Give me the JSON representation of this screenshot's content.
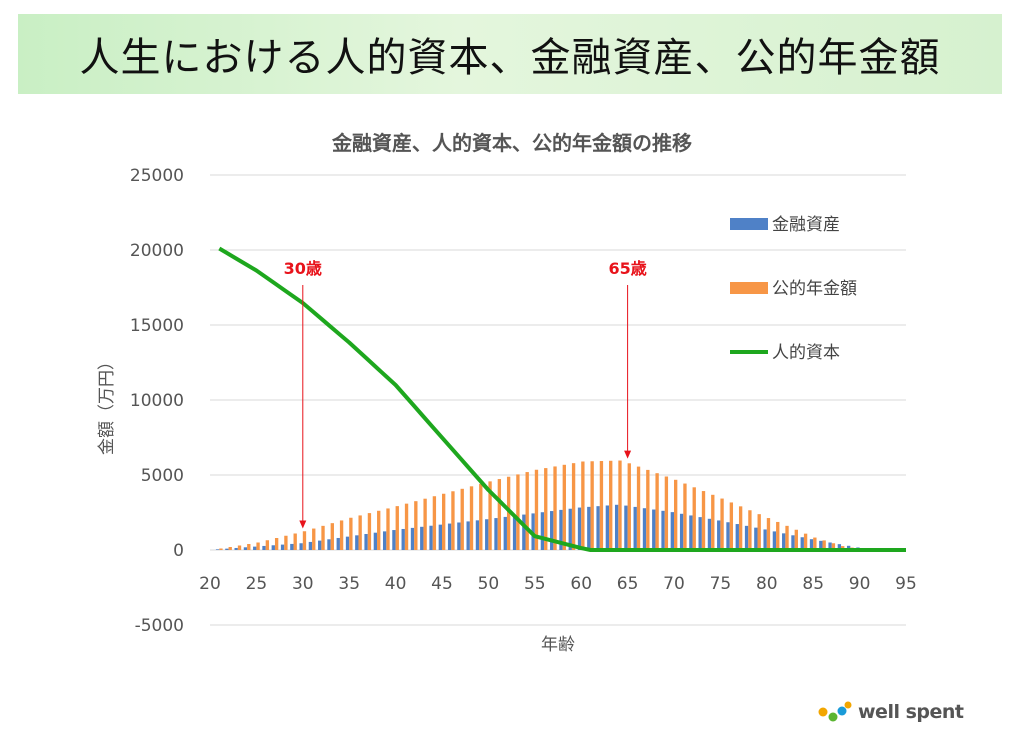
{
  "page_title": "人生における人的資本、金融資産、公的年金額",
  "brand": {
    "name": "well spent",
    "colors": [
      "#f2a600",
      "#5bb531",
      "#1a9bd8"
    ]
  },
  "chart_data": {
    "type": "bar",
    "title": "金融資産、人的資本、公的年金額の推移",
    "xlabel": "年齢",
    "ylabel": "金額（万円）",
    "xlim": [
      20,
      95
    ],
    "ylim": [
      -5000,
      25000
    ],
    "x_ticks": [
      20,
      25,
      30,
      35,
      40,
      45,
      50,
      55,
      60,
      65,
      70,
      75,
      80,
      85,
      90,
      95
    ],
    "y_ticks": [
      -5000,
      0,
      5000,
      10000,
      15000,
      20000,
      25000
    ],
    "grid": true,
    "legend_position": "top-right",
    "x": [
      21,
      22,
      23,
      24,
      25,
      26,
      27,
      28,
      29,
      30,
      31,
      32,
      33,
      34,
      35,
      36,
      37,
      38,
      39,
      40,
      41,
      42,
      43,
      44,
      45,
      46,
      47,
      48,
      49,
      50,
      51,
      52,
      53,
      54,
      55,
      56,
      57,
      58,
      59,
      60,
      61,
      62,
      63,
      64,
      65,
      66,
      67,
      68,
      69,
      70,
      71,
      72,
      73,
      74,
      75,
      76,
      77,
      78,
      79,
      80,
      81,
      82,
      83,
      84,
      85,
      86,
      87,
      88,
      89,
      90,
      91,
      92,
      93,
      94,
      95
    ],
    "series": [
      {
        "name": "金融資産",
        "type": "bar",
        "color": "#4f81c7",
        "values": [
          45,
          90,
          135,
          180,
          225,
          270,
          315,
          360,
          405,
          450,
          538,
          626,
          714,
          802,
          890,
          978,
          1066,
          1154,
          1242,
          1330,
          1402,
          1474,
          1546,
          1618,
          1690,
          1762,
          1834,
          1906,
          1978,
          2050,
          2128,
          2206,
          2284,
          2362,
          2440,
          2518,
          2596,
          2674,
          2752,
          2830,
          2876,
          2922,
          2968,
          3014,
          2960,
          2873,
          2786,
          2699,
          2612,
          2525,
          2414,
          2303,
          2192,
          2081,
          1970,
          1850,
          1730,
          1610,
          1490,
          1370,
          1240,
          1110,
          980,
          850,
          720,
          610,
          500,
          390,
          280,
          170,
          80,
          20,
          0,
          0,
          0
        ]
      },
      {
        "name": "公的年金額",
        "type": "bar",
        "color": "#f79646",
        "values": [
          100,
          200,
          300,
          400,
          500,
          650,
          800,
          950,
          1100,
          1250,
          1430,
          1610,
          1790,
          1970,
          2150,
          2305,
          2460,
          2615,
          2770,
          2925,
          3090,
          3255,
          3420,
          3585,
          3750,
          3915,
          4080,
          4245,
          4410,
          4575,
          4730,
          4885,
          5040,
          5195,
          5350,
          5460,
          5570,
          5680,
          5790,
          5900,
          5916,
          5932,
          5948,
          5964,
          5780,
          5560,
          5340,
          5120,
          4900,
          4680,
          4430,
          4180,
          3930,
          3680,
          3430,
          3170,
          2910,
          2650,
          2390,
          2130,
          1870,
          1610,
          1350,
          1090,
          830,
          640,
          450,
          260,
          160,
          60,
          20,
          0,
          0,
          0,
          0
        ]
      },
      {
        "name": "人的資本",
        "type": "line",
        "color": "#1ea71e",
        "values": [
          20100,
          19733,
          19367,
          19000,
          18633,
          18200,
          17767,
          17333,
          16900,
          16467,
          15940,
          15413,
          14886,
          14359,
          13832,
          13266,
          12700,
          12134,
          11568,
          11000,
          10299,
          9598,
          8897,
          8196,
          7494,
          6795,
          6096,
          5397,
          4698,
          4000,
          3384,
          2768,
          2152,
          1536,
          920,
          762,
          604,
          446,
          288,
          130,
          0,
          0,
          0,
          0,
          0,
          0,
          0,
          0,
          0,
          0,
          0,
          0,
          0,
          0,
          0,
          0,
          0,
          0,
          0,
          0,
          0,
          0,
          0,
          0,
          0,
          0,
          0,
          0,
          0,
          0,
          0,
          0,
          0,
          0,
          0
        ]
      }
    ],
    "annotations": [
      {
        "label": "30歳",
        "x": 30
      },
      {
        "label": "65歳",
        "x": 65
      }
    ]
  }
}
